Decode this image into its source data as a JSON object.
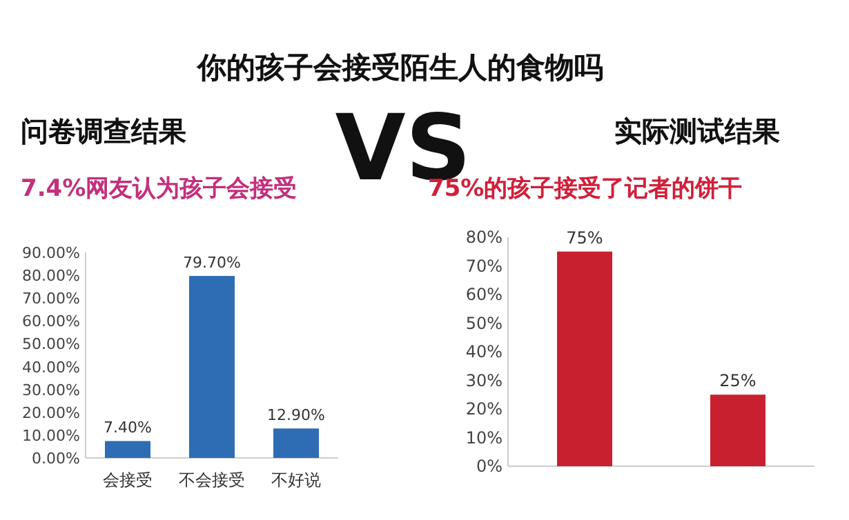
{
  "chart_data": [
    {
      "type": "other",
      "title": "你的孩子会接受陌生人的食物吗",
      "annotations": [
        "VS"
      ]
    },
    {
      "type": "bar",
      "title": "问卷调查结果",
      "subtitle": "7.4%网友认为孩子会接受",
      "categories": [
        "会接受",
        "不会接受",
        "不好说"
      ],
      "values": [
        7.4,
        79.7,
        12.9
      ],
      "value_labels": [
        "7.40%",
        "79.70%",
        "12.90%"
      ],
      "color": "#2e6db4",
      "ylim": [
        0,
        90
      ],
      "yticks": [
        {
          "value": 0,
          "label": "0.00%"
        },
        {
          "value": 10,
          "label": "10.00%"
        },
        {
          "value": 20,
          "label": "20.00%"
        },
        {
          "value": 30,
          "label": "30.00%"
        },
        {
          "value": 40,
          "label": "40.00%"
        },
        {
          "value": 50,
          "label": "50.00%"
        },
        {
          "value": 60,
          "label": "60.00%"
        },
        {
          "value": 70,
          "label": "70.00%"
        },
        {
          "value": 80,
          "label": "80.00%"
        },
        {
          "value": 90,
          "label": "90.00%"
        }
      ]
    },
    {
      "type": "bar",
      "title": "实际测试结果",
      "subtitle": "75%的孩子接受了记者的饼干",
      "categories": [
        null,
        null
      ],
      "values": [
        75,
        25
      ],
      "value_labels": [
        "75%",
        "25%"
      ],
      "color": "#c8202f",
      "ylim": [
        0,
        80
      ],
      "yticks": [
        {
          "value": 0,
          "label": "0%"
        },
        {
          "value": 10,
          "label": "10%"
        },
        {
          "value": 20,
          "label": "20%"
        },
        {
          "value": 30,
          "label": "30%"
        },
        {
          "value": 40,
          "label": "40%"
        },
        {
          "value": 50,
          "label": "50%"
        },
        {
          "value": 60,
          "label": "60%"
        },
        {
          "value": 70,
          "label": "70%"
        },
        {
          "value": 80,
          "label": "80%"
        }
      ]
    }
  ]
}
